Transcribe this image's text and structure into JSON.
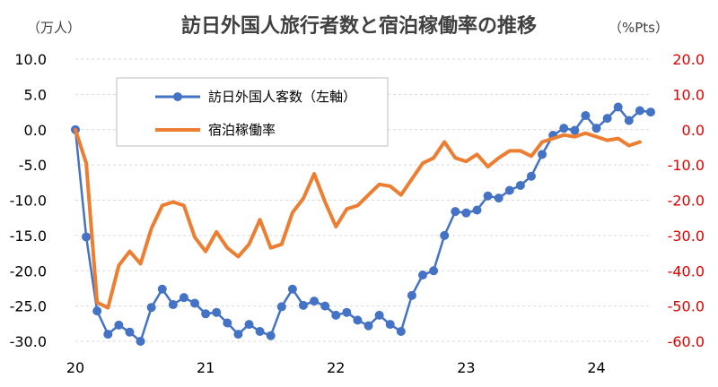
{
  "chart_data": {
    "type": "line",
    "title": "訪日外国人旅行者数と宿泊稼働率の推移",
    "left_unit": "（万人）",
    "right_unit": "（%Pts）",
    "left_axis": {
      "min": -30,
      "max": 10,
      "ticks": [
        "10.0",
        "5.0",
        "0.0",
        "-5.0",
        "-10.0",
        "-15.0",
        "-20.0",
        "-25.0",
        "-30.0"
      ]
    },
    "right_axis": {
      "min": -60,
      "max": 20,
      "ticks": [
        "20.0",
        "10.0",
        "0.0",
        "-10.0",
        "-20.0",
        "-30.0",
        "-40.0",
        "-50.0",
        "-60.0"
      ],
      "color": "#e00000"
    },
    "x_ticks": [
      {
        "label": "20",
        "index": 0
      },
      {
        "label": "21",
        "index": 12
      },
      {
        "label": "22",
        "index": 24
      },
      {
        "label": "23",
        "index": 36
      },
      {
        "label": "24",
        "index": 48
      }
    ],
    "grid": true,
    "legend_position": "top-left",
    "series": [
      {
        "name": "訪日外国人客数（左軸）",
        "axis": "left",
        "color": "#4472c4",
        "marker": "circle",
        "values": [
          0.0,
          -15.2,
          -25.7,
          -29.0,
          -27.7,
          -28.7,
          -30.0,
          -25.2,
          -22.6,
          -24.8,
          -23.8,
          -24.6,
          -26.1,
          -25.9,
          -27.4,
          -29.0,
          -27.6,
          -28.6,
          -29.2,
          -25.1,
          -22.6,
          -24.9,
          -24.3,
          -25.0,
          -26.3,
          -25.9,
          -27.0,
          -27.8,
          -26.3,
          -27.6,
          -28.6,
          -23.5,
          -20.6,
          -20.0,
          -15.0,
          -11.6,
          -11.8,
          -11.4,
          -9.4,
          -9.7,
          -8.6,
          -7.9,
          -6.6,
          -3.5,
          -0.8,
          0.2,
          -0.1,
          2.0,
          0.2,
          1.6,
          3.2,
          1.3,
          2.7,
          2.5
        ]
      },
      {
        "name": "宿泊稼働率",
        "axis": "right",
        "color": "#ed7d31",
        "marker": "none",
        "values": [
          0.0,
          -9.5,
          -49.0,
          -50.5,
          -38.5,
          -34.5,
          -38.0,
          -28.0,
          -21.5,
          -20.5,
          -21.5,
          -30.5,
          -34.5,
          -29.0,
          -33.5,
          -36.0,
          -32.5,
          -25.5,
          -33.5,
          -32.5,
          -23.5,
          -19.5,
          -12.5,
          -20.5,
          -27.5,
          -22.5,
          -21.5,
          -18.5,
          -15.5,
          -16.0,
          -18.5,
          -14.0,
          -9.5,
          -8.0,
          -3.5,
          -8.0,
          -9.0,
          -7.0,
          -10.5,
          -8.0,
          -6.0,
          -6.0,
          -7.5,
          -3.5,
          -2.5,
          -1.5,
          -2.0,
          -1.0,
          -2.0,
          -3.0,
          -2.5,
          -4.5,
          -3.5
        ]
      }
    ]
  }
}
